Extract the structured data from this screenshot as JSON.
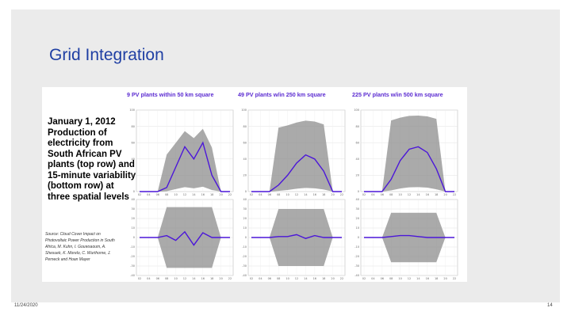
{
  "slide": {
    "title": "Grid Integration",
    "date": "11/24/2020",
    "page_number": "14"
  },
  "figure": {
    "caption": "January 1, 2012 Production of electricity from South African PV plants (top row) and 15-minute variability (bottom row) at three spatial levels",
    "source": "Source: Cloud Cover Impact on Photovoltaic Power Production in South Africa, M. Kuhn, I. Gouwsaoum, A. Shesuek, K. Morelo, C. Wurthorne, J. Perneck and Hoan Mayer",
    "columns": [
      "9 PV plants within 50 km square",
      "49 PV plants w/in 250 km square",
      "225 PV plants w/in 500 km square"
    ],
    "colors": {
      "mean_line": "#4b16d9",
      "spread": "#8e8e8e",
      "heading": "#5b2bd1",
      "title": "#1f3fa3"
    }
  },
  "chart_data": [
    {
      "type": "line",
      "title": "9 PV plants within 50 km square",
      "row": "production",
      "x": [
        "02",
        "04",
        "06",
        "08",
        "10",
        "12",
        "14",
        "16",
        "18",
        "20",
        "22"
      ],
      "ylim": [
        0,
        100
      ],
      "yticks": [
        0,
        20,
        40,
        60,
        80,
        100
      ],
      "series": [
        {
          "values": [
            0,
            0,
            0,
            5,
            30,
            55,
            40,
            60,
            20,
            0,
            0
          ]
        }
      ]
    },
    {
      "type": "line",
      "title": "49 PV plants w/in 250 km square",
      "row": "production",
      "x": [
        "02",
        "04",
        "06",
        "08",
        "10",
        "12",
        "14",
        "16",
        "18",
        "20",
        "22"
      ],
      "ylim": [
        0,
        100
      ],
      "yticks": [
        0,
        20,
        40,
        60,
        80,
        100
      ],
      "series": [
        {
          "values": [
            0,
            0,
            0,
            8,
            20,
            35,
            45,
            40,
            25,
            0,
            0
          ]
        }
      ]
    },
    {
      "type": "line",
      "title": "225 PV plants w/in 500 km square",
      "row": "production",
      "x": [
        "02",
        "04",
        "06",
        "08",
        "10",
        "12",
        "14",
        "16",
        "18",
        "20",
        "22"
      ],
      "ylim": [
        0,
        100
      ],
      "yticks": [
        0,
        20,
        40,
        60,
        80,
        100
      ],
      "series": [
        {
          "values": [
            0,
            0,
            0,
            15,
            38,
            52,
            55,
            48,
            28,
            0,
            0
          ]
        }
      ]
    },
    {
      "type": "line",
      "title": "9 PV plants within 50 km square",
      "row": "variability",
      "x": [
        "02",
        "04",
        "06",
        "08",
        "10",
        "12",
        "14",
        "16",
        "18",
        "20",
        "22"
      ],
      "ylim": [
        -40,
        40
      ],
      "yticks": [
        -40,
        -30,
        -20,
        -10,
        0,
        10,
        20,
        30,
        40
      ],
      "series": [
        {
          "values": [
            0,
            0,
            0,
            2,
            -3,
            6,
            -8,
            5,
            0,
            0,
            0
          ]
        }
      ]
    },
    {
      "type": "line",
      "title": "49 PV plants w/in 250 km square",
      "row": "variability",
      "x": [
        "02",
        "04",
        "06",
        "08",
        "10",
        "12",
        "14",
        "16",
        "18",
        "20",
        "22"
      ],
      "ylim": [
        -40,
        40
      ],
      "yticks": [
        -40,
        -30,
        -20,
        -10,
        0,
        10,
        20,
        30,
        40
      ],
      "series": [
        {
          "values": [
            0,
            0,
            0,
            1,
            1,
            3,
            -1,
            2,
            0,
            0,
            0
          ]
        }
      ]
    },
    {
      "type": "line",
      "title": "225 PV plants w/in 500 km square",
      "row": "variability",
      "x": [
        "02",
        "04",
        "06",
        "08",
        "10",
        "12",
        "14",
        "16",
        "18",
        "20",
        "22"
      ],
      "ylim": [
        -40,
        40
      ],
      "yticks": [
        -40,
        -30,
        -20,
        -10,
        0,
        10,
        20,
        30,
        40
      ],
      "series": [
        {
          "values": [
            0,
            0,
            0,
            1,
            2,
            2,
            1,
            0,
            0,
            0,
            0
          ]
        }
      ]
    }
  ]
}
